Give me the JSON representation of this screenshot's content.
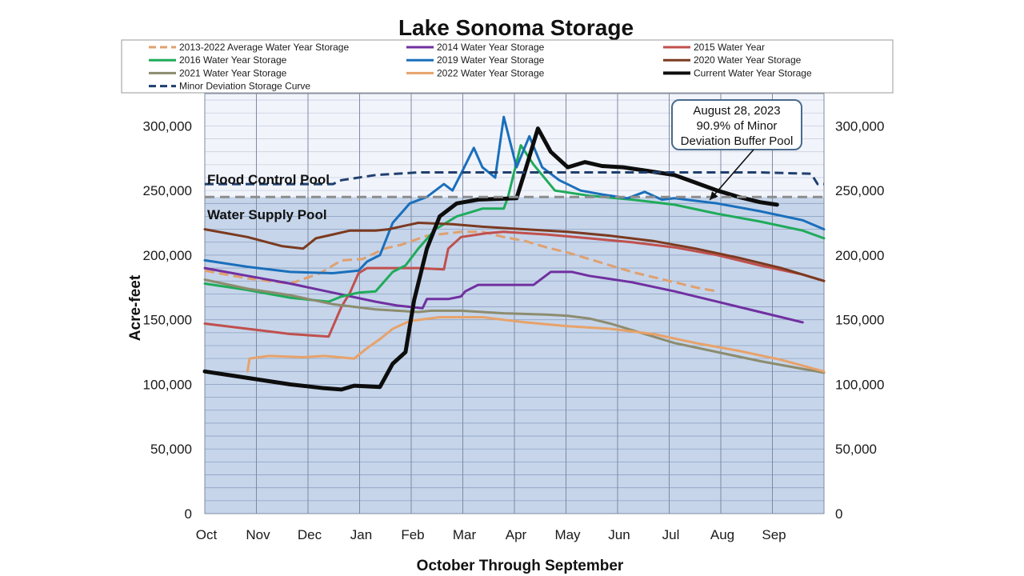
{
  "chart_data": {
    "type": "line",
    "title": "Lake Sonoma Storage",
    "xlabel": "October Through September",
    "ylabel": "Acre-feet",
    "ylim": [
      0,
      325000
    ],
    "grid": true,
    "legend_position": "top",
    "categories": [
      "Oct",
      "Nov",
      "Dec",
      "Jan",
      "Feb",
      "Mar",
      "Apr",
      "May",
      "Jun",
      "Jul",
      "Aug",
      "Sep"
    ],
    "yticks": [
      0,
      50000,
      100000,
      150000,
      200000,
      250000,
      300000
    ],
    "ytick_labels": [
      "0",
      "50,000",
      "100,000",
      "150,000",
      "200,000",
      "250,000",
      "300,000"
    ],
    "pools": {
      "flood_control_label": "Flood Control Pool",
      "water_supply_label": "Water Supply Pool",
      "water_supply_top": 245000,
      "flood_control_color": "#f1f4fb",
      "water_supply_color": "#c6d5ea"
    },
    "annotation": {
      "lines": [
        "August 28, 2023",
        "90.9% of Minor",
        "Deviation Buffer Pool"
      ],
      "point": {
        "x": 11.9,
        "y": 239000
      }
    },
    "series": [
      {
        "name": "2013-2022 Average Water Year Storage",
        "color": "#e0a06e",
        "dash": "12,6",
        "width": 3,
        "points": [
          [
            0,
            188000
          ],
          [
            1,
            182000
          ],
          [
            2,
            178000
          ],
          [
            2.7,
            186000
          ],
          [
            3.2,
            196000
          ],
          [
            3.7,
            197000
          ],
          [
            4.2,
            205000
          ],
          [
            4.6,
            208000
          ],
          [
            5.2,
            215000
          ],
          [
            6,
            218000
          ],
          [
            6.5,
            218000
          ],
          [
            7,
            214000
          ],
          [
            7.5,
            211000
          ],
          [
            8,
            206000
          ],
          [
            8.5,
            202000
          ],
          [
            9,
            197000
          ],
          [
            9.5,
            192000
          ],
          [
            10,
            187000
          ],
          [
            10.5,
            183000
          ],
          [
            11,
            179000
          ],
          [
            11.5,
            175000
          ],
          [
            12,
            172000
          ]
        ]
      },
      {
        "name": "2014 Water Year Storage",
        "color": "#7030a0",
        "width": 3,
        "points": [
          [
            0,
            190000
          ],
          [
            1,
            184000
          ],
          [
            2,
            178000
          ],
          [
            3,
            171000
          ],
          [
            4,
            164000
          ],
          [
            4.5,
            161000
          ],
          [
            5.1,
            159000
          ],
          [
            5.2,
            166000
          ],
          [
            5.7,
            166000
          ],
          [
            6,
            168000
          ],
          [
            6.1,
            172000
          ],
          [
            6.4,
            177000
          ],
          [
            7.7,
            177000
          ],
          [
            8.1,
            187000
          ],
          [
            8.6,
            187000
          ],
          [
            9,
            184000
          ],
          [
            10,
            179000
          ],
          [
            11,
            172000
          ],
          [
            12,
            164000
          ],
          [
            13,
            156000
          ],
          [
            14,
            148000
          ]
        ]
      },
      {
        "name": "2015 Water Year",
        "color": "#c0504d",
        "width": 3,
        "points": [
          [
            0,
            147000
          ],
          [
            1,
            143000
          ],
          [
            2,
            139000
          ],
          [
            2.9,
            137000
          ],
          [
            3.2,
            160000
          ],
          [
            3.4,
            171000
          ],
          [
            3.6,
            186000
          ],
          [
            3.8,
            190000
          ],
          [
            5,
            190000
          ],
          [
            5.6,
            189000
          ],
          [
            5.7,
            205000
          ],
          [
            6,
            214000
          ],
          [
            6.6,
            217000
          ],
          [
            7,
            218000
          ],
          [
            8,
            216000
          ],
          [
            9,
            213000
          ],
          [
            10,
            210000
          ],
          [
            11,
            206000
          ],
          [
            12,
            200000
          ],
          [
            13,
            192000
          ],
          [
            14,
            185000
          ],
          [
            14.5,
            180000
          ]
        ]
      },
      {
        "name": "2016 Water Year Storage",
        "color": "#1fab5a",
        "width": 3,
        "points": [
          [
            0,
            178000
          ],
          [
            1,
            173000
          ],
          [
            2,
            167000
          ],
          [
            2.9,
            164000
          ],
          [
            3.2,
            168000
          ],
          [
            3.6,
            171000
          ],
          [
            4,
            172000
          ],
          [
            4.4,
            187000
          ],
          [
            4.7,
            192000
          ],
          [
            5,
            205000
          ],
          [
            5.4,
            220000
          ],
          [
            5.9,
            230000
          ],
          [
            6.5,
            236000
          ],
          [
            7,
            236000
          ],
          [
            7.1,
            245000
          ],
          [
            7.4,
            285000
          ],
          [
            7.7,
            270000
          ],
          [
            8.2,
            250000
          ],
          [
            9,
            246000
          ],
          [
            10,
            243000
          ],
          [
            11,
            239000
          ],
          [
            12,
            232000
          ],
          [
            13,
            226000
          ],
          [
            14,
            219000
          ],
          [
            14.5,
            213000
          ]
        ]
      },
      {
        "name": "2019 Water Year Storage",
        "color": "#1a6fbb",
        "width": 3,
        "points": [
          [
            0,
            196000
          ],
          [
            1,
            191000
          ],
          [
            2,
            187000
          ],
          [
            3,
            186000
          ],
          [
            3.6,
            188000
          ],
          [
            3.8,
            195000
          ],
          [
            4.1,
            200000
          ],
          [
            4.4,
            225000
          ],
          [
            4.8,
            240000
          ],
          [
            5.2,
            245000
          ],
          [
            5.6,
            255000
          ],
          [
            5.8,
            250000
          ],
          [
            6,
            263000
          ],
          [
            6.3,
            283000
          ],
          [
            6.5,
            268000
          ],
          [
            6.8,
            260000
          ],
          [
            7,
            307000
          ],
          [
            7.3,
            268000
          ],
          [
            7.6,
            292000
          ],
          [
            7.9,
            268000
          ],
          [
            8.3,
            258000
          ],
          [
            8.8,
            250000
          ],
          [
            9.3,
            247000
          ],
          [
            9.9,
            244000
          ],
          [
            10.3,
            249000
          ],
          [
            10.7,
            243000
          ],
          [
            11,
            244000
          ],
          [
            12,
            240000
          ],
          [
            13,
            234000
          ],
          [
            14,
            227000
          ],
          [
            14.5,
            220000
          ]
        ]
      },
      {
        "name": "2020 Water Year Storage",
        "color": "#7b3a20",
        "width": 3,
        "points": [
          [
            0,
            220000
          ],
          [
            1,
            214000
          ],
          [
            1.8,
            207000
          ],
          [
            2.3,
            205000
          ],
          [
            2.6,
            213000
          ],
          [
            3,
            216000
          ],
          [
            3.4,
            219000
          ],
          [
            4,
            219000
          ],
          [
            4.3,
            220000
          ],
          [
            5,
            225000
          ],
          [
            5.8,
            224000
          ],
          [
            6.5,
            222000
          ],
          [
            7.5,
            220000
          ],
          [
            8.5,
            218000
          ],
          [
            9.5,
            215000
          ],
          [
            10.5,
            211000
          ],
          [
            11.5,
            205000
          ],
          [
            12.5,
            198000
          ],
          [
            13.5,
            190000
          ],
          [
            14.5,
            180000
          ]
        ]
      },
      {
        "name": "2021 Water Year Storage",
        "color": "#8c8c6e",
        "width": 3,
        "points": [
          [
            0,
            181000
          ],
          [
            1,
            174000
          ],
          [
            2,
            169000
          ],
          [
            3,
            162000
          ],
          [
            4,
            158000
          ],
          [
            4.5,
            157000
          ],
          [
            5,
            156000
          ],
          [
            5.3,
            157000
          ],
          [
            6,
            157000
          ],
          [
            7,
            155000
          ],
          [
            8,
            154000
          ],
          [
            8.5,
            153000
          ],
          [
            9,
            151000
          ],
          [
            9.5,
            147000
          ],
          [
            10,
            142000
          ],
          [
            10.5,
            137000
          ],
          [
            11,
            132000
          ],
          [
            12,
            125000
          ],
          [
            13,
            118000
          ],
          [
            14,
            112000
          ],
          [
            14.5,
            109000
          ]
        ]
      },
      {
        "name": "2022 Water Year Storage",
        "color": "#e7a26a",
        "width": 3,
        "points": [
          [
            1,
            110000
          ],
          [
            1.05,
            120000
          ],
          [
            1.5,
            122000
          ],
          [
            2.3,
            121000
          ],
          [
            2.8,
            122000
          ],
          [
            3.5,
            120000
          ],
          [
            3.8,
            128000
          ],
          [
            4.1,
            135000
          ],
          [
            4.4,
            143000
          ],
          [
            4.8,
            149000
          ],
          [
            5.5,
            152000
          ],
          [
            6.5,
            152000
          ],
          [
            7.5,
            148000
          ],
          [
            8.5,
            145000
          ],
          [
            9.5,
            143000
          ],
          [
            10.5,
            139000
          ],
          [
            11.5,
            132000
          ],
          [
            12.5,
            126000
          ],
          [
            13.5,
            119000
          ],
          [
            14.5,
            110000
          ]
        ]
      },
      {
        "name": "Current Water Year Storage",
        "color": "#0d0d0d",
        "width": 5,
        "points": [
          [
            0,
            110000
          ],
          [
            1,
            105000
          ],
          [
            2,
            100000
          ],
          [
            2.8,
            97000
          ],
          [
            3.2,
            96000
          ],
          [
            3.5,
            99000
          ],
          [
            4.1,
            98000
          ],
          [
            4.4,
            116000
          ],
          [
            4.7,
            125000
          ],
          [
            4.9,
            165000
          ],
          [
            5.2,
            205000
          ],
          [
            5.5,
            230000
          ],
          [
            5.9,
            240000
          ],
          [
            6.4,
            243000
          ],
          [
            7.3,
            244000
          ],
          [
            7.5,
            265000
          ],
          [
            7.8,
            298000
          ],
          [
            8.1,
            280000
          ],
          [
            8.5,
            268000
          ],
          [
            8.9,
            272000
          ],
          [
            9.3,
            269000
          ],
          [
            9.8,
            268000
          ],
          [
            10.4,
            265000
          ],
          [
            11,
            262000
          ],
          [
            11.5,
            256000
          ],
          [
            12,
            250000
          ],
          [
            12.5,
            245000
          ],
          [
            13,
            241000
          ],
          [
            13.4,
            239000
          ]
        ]
      },
      {
        "name": "Minor Deviation Storage Curve",
        "color": "#1f3f6e",
        "dash": "11,6",
        "width": 3,
        "points": [
          [
            0,
            255000
          ],
          [
            3,
            255000
          ],
          [
            3.2,
            258000
          ],
          [
            4,
            262000
          ],
          [
            5,
            264000
          ],
          [
            6,
            264000
          ],
          [
            10,
            264000
          ],
          [
            11,
            264000
          ],
          [
            13,
            264000
          ],
          [
            14.2,
            263000
          ],
          [
            14.35,
            255000
          ],
          [
            14.5,
            255000
          ]
        ]
      },
      {
        "name": "Water Supply Pool Level",
        "color": "#8c8c8c",
        "dash": "12,7",
        "width": 3,
        "legend": false,
        "points": [
          [
            0,
            245000
          ],
          [
            14.5,
            245000
          ]
        ]
      }
    ]
  }
}
